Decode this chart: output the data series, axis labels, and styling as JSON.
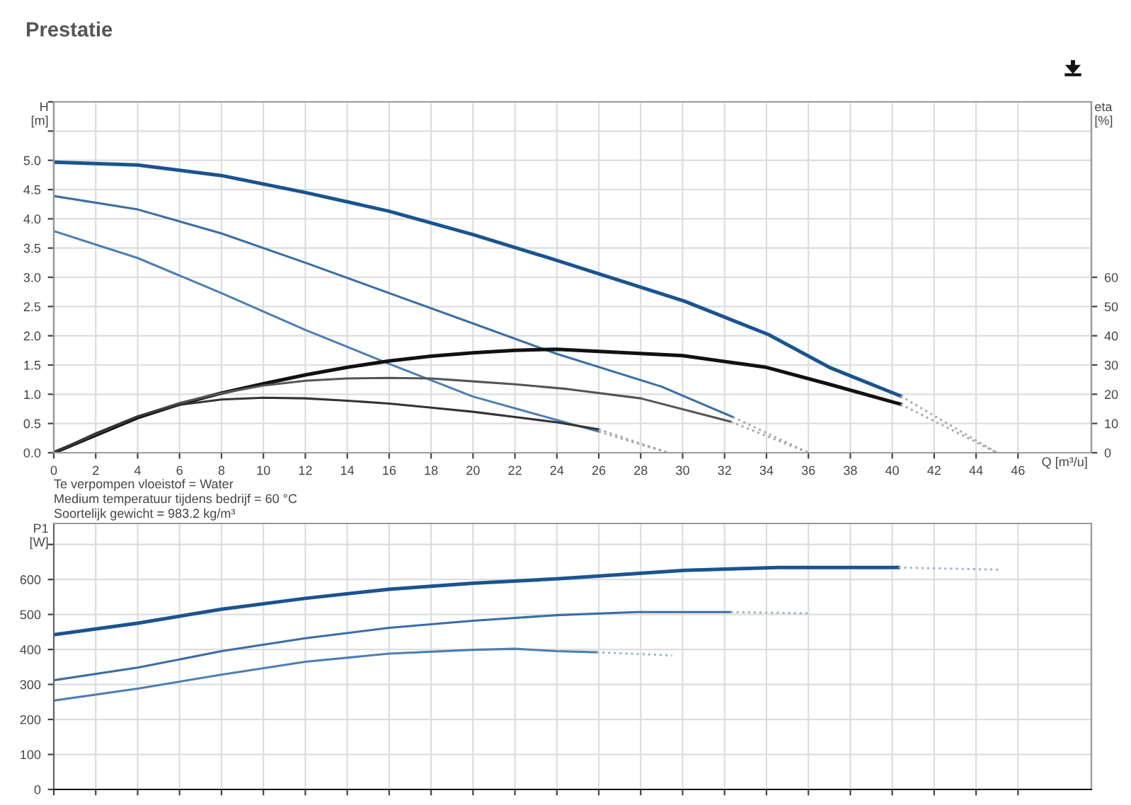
{
  "chart_data": [
    {
      "type": "line",
      "title": "Prestatie",
      "xlabel": "Q [m³/u]",
      "ylabel": "H\n[m]",
      "y2label": "eta\n[%]",
      "xlim": [
        0,
        49.5
      ],
      "xticks": [
        0,
        2,
        4,
        6,
        8,
        10,
        12,
        14,
        16,
        18,
        20,
        22,
        24,
        26,
        28,
        30,
        32,
        34,
        36,
        38,
        40,
        42,
        44,
        46
      ],
      "ylim": [
        0,
        6
      ],
      "yticks": [
        {
          "value": 0,
          "label": "0.0"
        },
        0.5,
        {
          "value": 1,
          "label": "1.0"
        },
        1.5,
        {
          "value": 2,
          "label": "2.0"
        },
        2.5,
        {
          "value": 3,
          "label": "3.0"
        },
        3.5,
        {
          "value": 4,
          "label": "4.0"
        },
        4.5,
        {
          "value": 5,
          "label": "5.0"
        },
        {
          "value": 5.5,
          "label": null
        },
        {
          "value": 6,
          "label": null
        }
      ],
      "y2lim": [
        0,
        120
      ],
      "y2ticks": [
        0,
        10,
        20,
        30,
        40,
        50,
        60
      ],
      "grid": true,
      "marker": "none",
      "annotations": [
        "Te verpompen vloeistof = Water",
        "Medium temperatuur tijdens bedrijf = 60 °C",
        "Soortelijk gewicht = 983.2 kg/m³"
      ],
      "series": [
        {
          "color": "#1a5490",
          "axis": "y",
          "line_style": "solid",
          "x": [
            0,
            4,
            8,
            12,
            16,
            20,
            24,
            30.1,
            34.1,
            37,
            40.4
          ],
          "values": [
            4.97,
            4.92,
            4.74,
            4.45,
            4.13,
            3.73,
            3.29,
            2.59,
            2.02,
            1.46,
            0.97
          ]
        },
        {
          "color": "#aaaaaa",
          "axis": "y",
          "line_style": "dotted",
          "x": [
            40.4,
            45
          ],
          "values": [
            0.97,
            0
          ]
        },
        {
          "color": "#3a6ea5",
          "axis": "y",
          "line_style": "solid",
          "x": [
            0,
            4,
            8,
            12,
            16,
            20,
            24,
            29,
            32.4
          ],
          "values": [
            4.39,
            4.16,
            3.75,
            3.25,
            2.73,
            2.21,
            1.69,
            1.13,
            0.61
          ]
        },
        {
          "color": "#aaaaaa",
          "axis": "y",
          "line_style": "dotted",
          "x": [
            32.4,
            36
          ],
          "values": [
            0.61,
            0
          ]
        },
        {
          "color": "#4d7fb3",
          "axis": "y",
          "line_style": "solid",
          "x": [
            0,
            4,
            8,
            12,
            16,
            20,
            24,
            26
          ],
          "values": [
            3.79,
            3.33,
            2.73,
            2.1,
            1.52,
            0.96,
            0.56,
            0.36
          ]
        },
        {
          "color": "#aaaaaa",
          "axis": "y",
          "line_style": "dotted",
          "x": [
            26,
            29.3
          ],
          "values": [
            0.36,
            0
          ]
        },
        {
          "color": "#111111",
          "axis": "y2",
          "line_style": "solid",
          "x": [
            0,
            2,
            4,
            6,
            8,
            10,
            12,
            14,
            16,
            18,
            20,
            22,
            24,
            30,
            34,
            37,
            40.4
          ],
          "values": [
            0,
            6,
            12,
            16.6,
            20.4,
            23.6,
            26.6,
            29.2,
            31.4,
            33,
            34.2,
            35,
            35.4,
            33.2,
            29.2,
            23.4,
            16.6
          ]
        },
        {
          "color": "#aaaaaa",
          "axis": "y2",
          "line_style": "dotted",
          "x": [
            40.4,
            45
          ],
          "values": [
            16.6,
            0
          ]
        },
        {
          "color": "#555555",
          "axis": "y2",
          "line_style": "solid",
          "x": [
            0,
            2,
            4,
            6,
            8,
            10,
            12,
            14,
            16,
            18,
            20,
            22,
            24.5,
            28,
            32.3
          ],
          "values": [
            0,
            6.4,
            12.4,
            17,
            20.4,
            23,
            24.6,
            25.4,
            25.6,
            25.4,
            24.4,
            23.4,
            21.8,
            18.6,
            10.6
          ]
        },
        {
          "color": "#aaaaaa",
          "axis": "y2",
          "line_style": "dotted",
          "x": [
            32.3,
            36
          ],
          "values": [
            10.6,
            0
          ]
        },
        {
          "color": "#333333",
          "axis": "y2",
          "line_style": "solid",
          "x": [
            0,
            2,
            4,
            6,
            8,
            10,
            12,
            14,
            16,
            18,
            20,
            22,
            24,
            26
          ],
          "values": [
            0,
            6.6,
            12.4,
            16.4,
            18.2,
            18.8,
            18.6,
            17.8,
            16.8,
            15.4,
            14,
            12.2,
            10.4,
            8
          ]
        },
        {
          "color": "#aaaaaa",
          "axis": "y2",
          "line_style": "dotted",
          "x": [
            26,
            29.3
          ],
          "values": [
            8,
            0
          ]
        }
      ]
    },
    {
      "type": "line",
      "ylabel": "P1\n[W]",
      "xlim": [
        0,
        49.5
      ],
      "xticks": [
        0,
        2,
        4,
        6,
        8,
        10,
        12,
        14,
        16,
        18,
        20,
        22,
        24,
        26,
        28,
        30,
        32,
        34,
        36,
        38,
        40,
        42,
        44,
        46
      ],
      "ylim": [
        0,
        760
      ],
      "yticks": [
        0,
        100,
        200,
        300,
        400,
        500,
        600,
        {
          "value": 700,
          "label": null
        }
      ],
      "tick_labels": "y",
      "grid": true,
      "marker": "none",
      "series": [
        {
          "color": "#1a5490",
          "line_style": "solid",
          "x": [
            0,
            4,
            8,
            12,
            16,
            20,
            24,
            30.1,
            34.6,
            40.3
          ],
          "values": [
            442,
            475,
            515,
            546,
            572,
            589,
            602,
            626,
            634,
            634
          ]
        },
        {
          "color": "#9db4cc",
          "line_style": "dotted",
          "x": [
            40.3,
            45.1
          ],
          "values": [
            634,
            628
          ]
        },
        {
          "color": "#3a6ea5",
          "line_style": "solid",
          "x": [
            0,
            4,
            8,
            12,
            16,
            20,
            24,
            27.8,
            32.3
          ],
          "values": [
            312,
            348,
            395,
            432,
            462,
            482,
            498,
            507,
            507
          ]
        },
        {
          "color": "#9db4cc",
          "line_style": "dotted",
          "x": [
            32.3,
            36
          ],
          "values": [
            507,
            503
          ]
        },
        {
          "color": "#4d7fb3",
          "line_style": "solid",
          "x": [
            0,
            4,
            8,
            12,
            16,
            20,
            22,
            24,
            25.9
          ],
          "values": [
            254,
            288,
            328,
            365,
            388,
            399,
            402,
            395,
            392
          ]
        },
        {
          "color": "#9db4cc",
          "line_style": "dotted",
          "x": [
            25.9,
            29.5
          ],
          "values": [
            392,
            383
          ]
        }
      ]
    }
  ]
}
